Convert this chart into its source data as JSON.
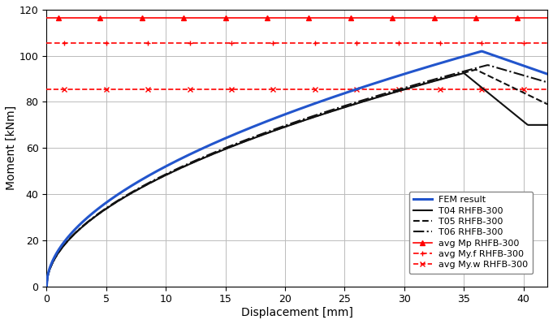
{
  "title": "",
  "xlabel": "Displacement [mm]",
  "ylabel": "Moment [kNm]",
  "xlim": [
    0,
    42
  ],
  "ylim": [
    0,
    120
  ],
  "yticks": [
    0,
    20,
    40,
    60,
    80,
    100,
    120
  ],
  "xticks": [
    0,
    5,
    10,
    15,
    20,
    25,
    30,
    35,
    40
  ],
  "avg_Mp": 116.5,
  "avg_Myf": 105.5,
  "avg_Myw": 85.5,
  "line_color_red": "#ff0000",
  "line_color_blue": "#2255cc",
  "line_color_black": "#111111",
  "bg_color": "#ffffff",
  "grid_color": "#bbbbbb",
  "legend_entries": [
    "FEM result",
    "T04 RHFB-300",
    "T05 RHFB-300",
    "T06 RHFB-300",
    "avg Mp RHFB-300",
    "avg My.f RHFB-300",
    "avg My.w RHFB-300"
  ]
}
